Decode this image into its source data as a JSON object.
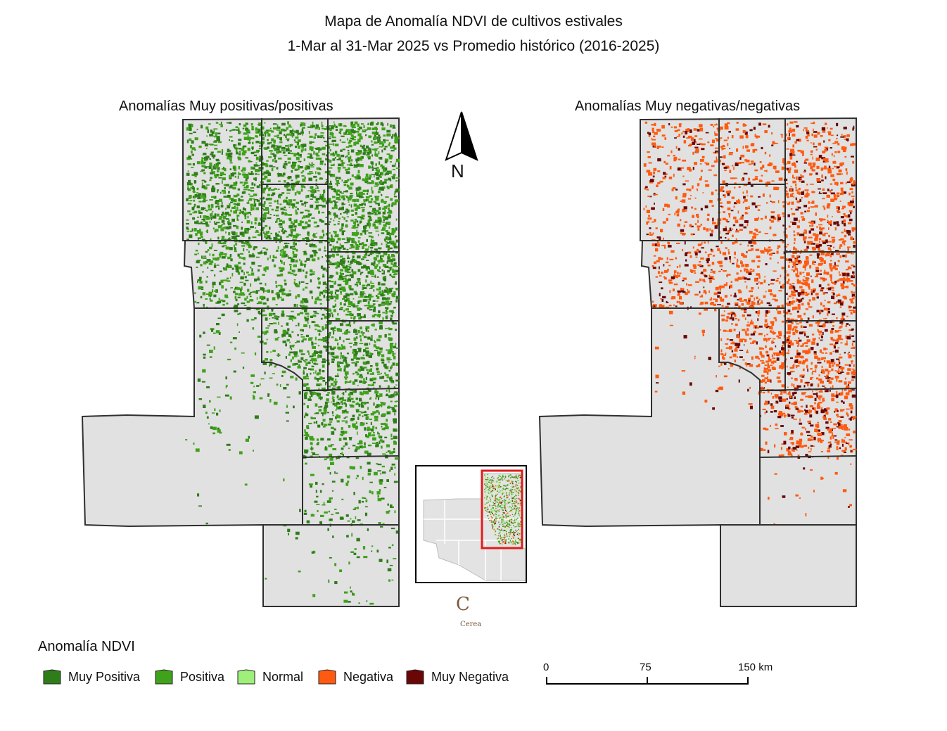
{
  "title": {
    "line1": "Mapa de Anomalía NDVI de cultivos estivales",
    "line2": "1-Mar al 31-Mar 2025 vs Promedio histórico (2016-2025)"
  },
  "panels": {
    "left_title": "Anomalías Muy positivas/positivas",
    "right_title": "Anomalías Muy negativas/negativas"
  },
  "north_arrow": {
    "label": "N"
  },
  "logo": {
    "fragment": "C",
    "subtext": "Cerea"
  },
  "legend": {
    "title": "Anomalía NDVI",
    "items": [
      {
        "label": "Muy Positiva",
        "color": "#2e7d1a"
      },
      {
        "label": "Positiva",
        "color": "#3fa21a"
      },
      {
        "label": "Normal",
        "color": "#9ef07a"
      },
      {
        "label": "Negativa",
        "color": "#ff5a10"
      },
      {
        "label": "Muy Negativa",
        "color": "#6b0606"
      }
    ]
  },
  "scale_bar": {
    "labels": [
      "0",
      "75",
      "150 km"
    ]
  },
  "colors": {
    "land": "#e1e1e1",
    "border": "#2f2f2f",
    "inset_frame": "#e01b1b"
  }
}
